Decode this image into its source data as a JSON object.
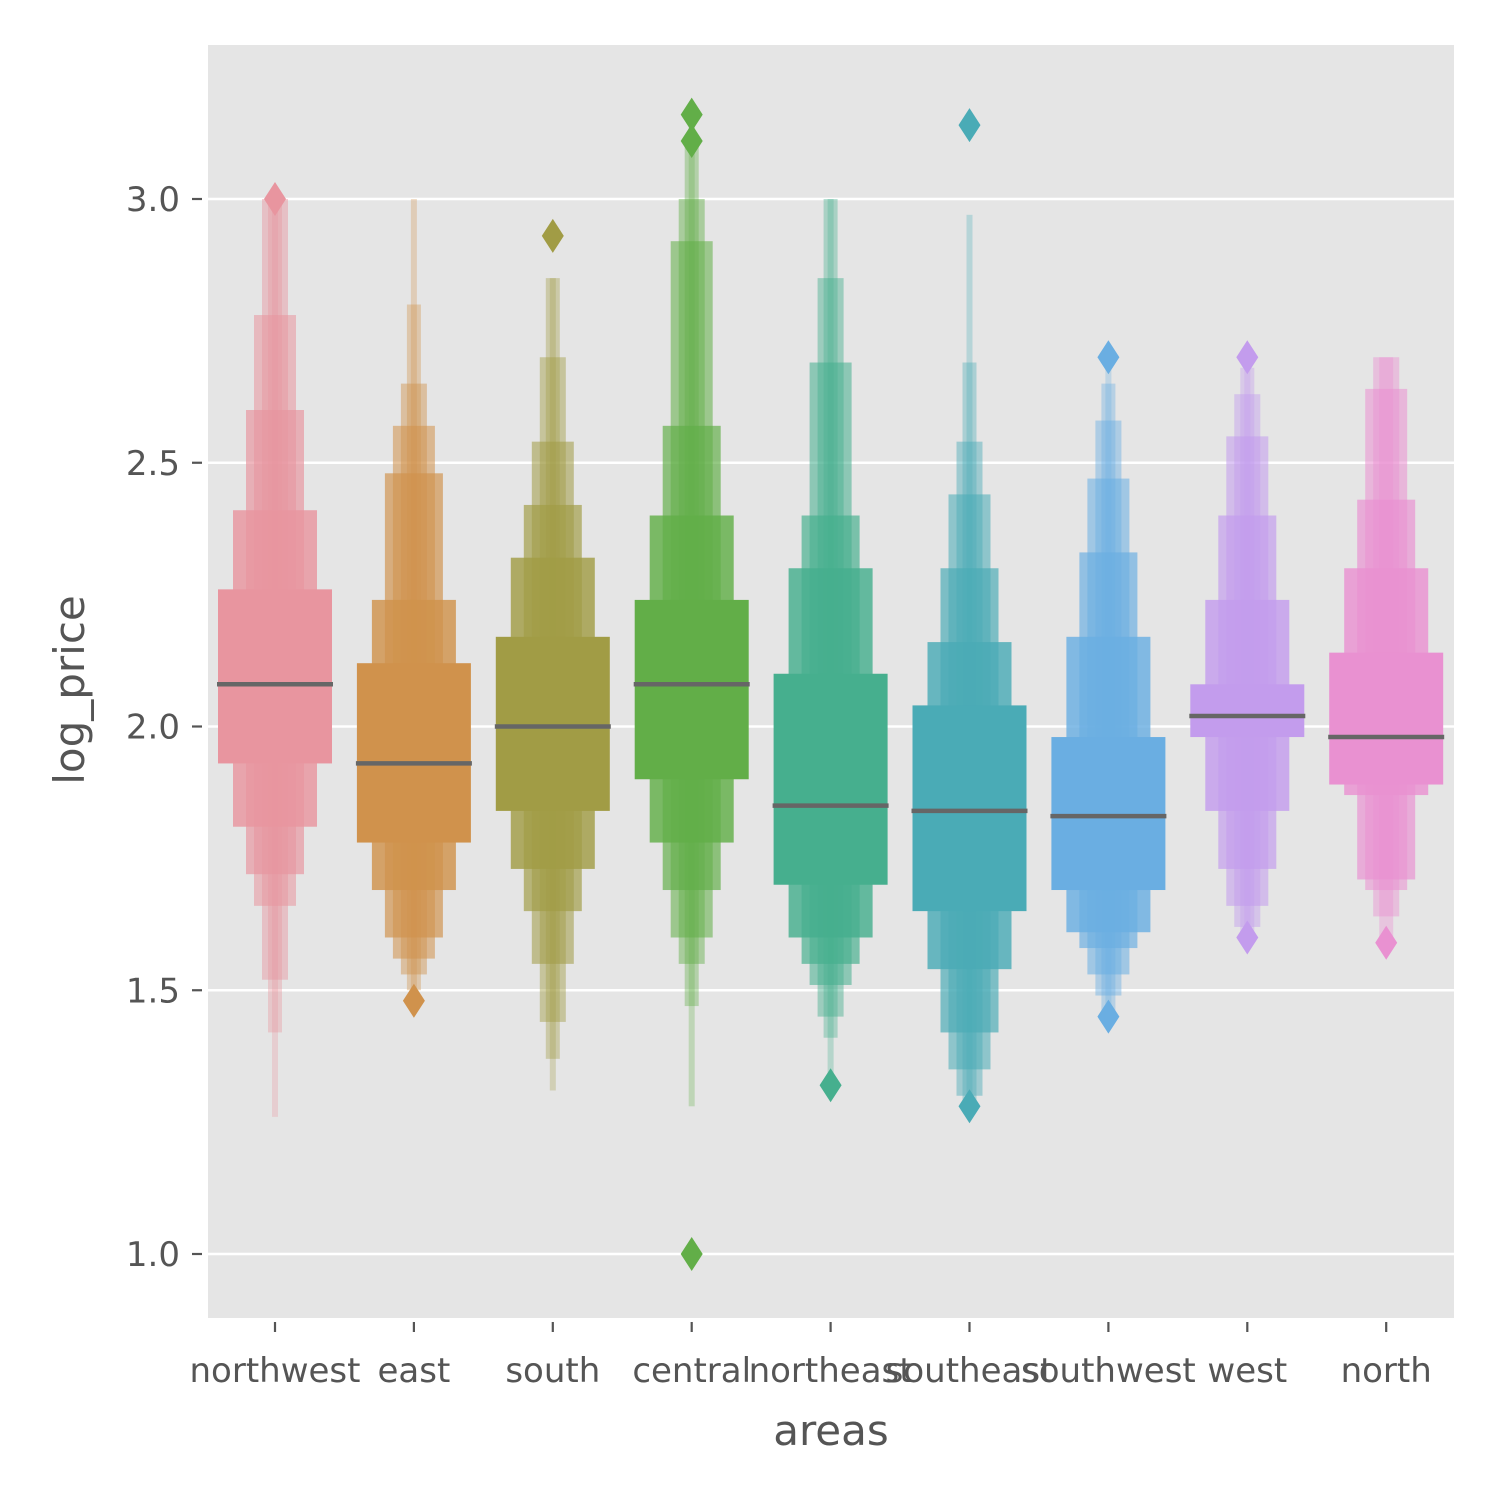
{
  "chart_data": {
    "type": "boxen",
    "title": "",
    "xlabel": "areas",
    "ylabel": "log_price",
    "ylim": [
      0.88,
      3.29
    ],
    "yticks": [
      1.0,
      1.5,
      2.0,
      2.5,
      3.0
    ],
    "ytick_labels": [
      "1.0",
      "1.5",
      "2.0",
      "2.5",
      "3.0"
    ],
    "grid": true,
    "categories": [
      "northwest",
      "east",
      "south",
      "central",
      "northeast",
      "southeast",
      "southwest",
      "west",
      "north"
    ],
    "colors": [
      "#e8959f",
      "#d0924c",
      "#a19c45",
      "#62ae48",
      "#46af8e",
      "#4aabb6",
      "#6aaee2",
      "#c39ced",
      "#e991d1"
    ],
    "median_color": "#666666",
    "background": "#e5e5e5",
    "grid_color": "#ffffff",
    "series": [
      {
        "category": "northwest",
        "median": 2.08,
        "boxes": [
          [
            1.93,
            2.26
          ],
          [
            1.81,
            2.41
          ],
          [
            1.72,
            2.6
          ],
          [
            1.66,
            2.78
          ],
          [
            1.52,
            3.0
          ],
          [
            1.42,
            3.0
          ],
          [
            1.26,
            3.0
          ]
        ],
        "outliers": [
          3.0
        ]
      },
      {
        "category": "east",
        "median": 1.93,
        "boxes": [
          [
            1.78,
            2.12
          ],
          [
            1.69,
            2.24
          ],
          [
            1.6,
            2.48
          ],
          [
            1.56,
            2.57
          ],
          [
            1.53,
            2.65
          ],
          [
            1.5,
            2.8
          ],
          [
            1.48,
            3.0
          ]
        ],
        "outliers": [
          1.48
        ]
      },
      {
        "category": "south",
        "median": 2.0,
        "boxes": [
          [
            1.84,
            2.17
          ],
          [
            1.73,
            2.32
          ],
          [
            1.65,
            2.42
          ],
          [
            1.55,
            2.54
          ],
          [
            1.44,
            2.7
          ],
          [
            1.37,
            2.85
          ],
          [
            1.31,
            2.85
          ]
        ],
        "outliers": [
          2.93
        ]
      },
      {
        "category": "central",
        "median": 2.08,
        "boxes": [
          [
            1.9,
            2.24
          ],
          [
            1.78,
            2.4
          ],
          [
            1.69,
            2.57
          ],
          [
            1.6,
            2.92
          ],
          [
            1.55,
            3.0
          ],
          [
            1.47,
            3.11
          ],
          [
            1.28,
            3.16
          ]
        ],
        "outliers": [
          1.0,
          3.11,
          3.16
        ]
      },
      {
        "category": "northeast",
        "median": 1.85,
        "boxes": [
          [
            1.7,
            2.1
          ],
          [
            1.6,
            2.3
          ],
          [
            1.55,
            2.4
          ],
          [
            1.51,
            2.69
          ],
          [
            1.45,
            2.85
          ],
          [
            1.41,
            3.0
          ],
          [
            1.33,
            3.0
          ]
        ],
        "outliers": [
          1.32
        ]
      },
      {
        "category": "southeast",
        "median": 1.84,
        "boxes": [
          [
            1.65,
            2.04
          ],
          [
            1.54,
            2.16
          ],
          [
            1.42,
            2.3
          ],
          [
            1.35,
            2.44
          ],
          [
            1.3,
            2.54
          ],
          [
            1.28,
            2.69
          ],
          [
            1.28,
            2.97
          ]
        ],
        "outliers": [
          1.28,
          3.14
        ]
      },
      {
        "category": "southwest",
        "median": 1.83,
        "boxes": [
          [
            1.69,
            1.98
          ],
          [
            1.61,
            2.17
          ],
          [
            1.58,
            2.33
          ],
          [
            1.53,
            2.47
          ],
          [
            1.49,
            2.58
          ],
          [
            1.46,
            2.65
          ],
          [
            1.45,
            2.7
          ]
        ],
        "outliers": [
          1.45,
          2.7
        ]
      },
      {
        "category": "west",
        "median": 2.02,
        "boxes": [
          [
            1.98,
            2.08
          ],
          [
            1.84,
            2.24
          ],
          [
            1.73,
            2.4
          ],
          [
            1.66,
            2.55
          ],
          [
            1.62,
            2.63
          ],
          [
            1.6,
            2.68
          ],
          [
            1.6,
            2.7
          ]
        ],
        "outliers": [
          1.6,
          2.7
        ]
      },
      {
        "category": "north",
        "median": 1.98,
        "boxes": [
          [
            1.89,
            2.14
          ],
          [
            1.87,
            2.3
          ],
          [
            1.71,
            2.43
          ],
          [
            1.69,
            2.64
          ],
          [
            1.64,
            2.7
          ],
          [
            1.6,
            2.7
          ]
        ],
        "outliers": [
          1.59
        ]
      }
    ]
  }
}
